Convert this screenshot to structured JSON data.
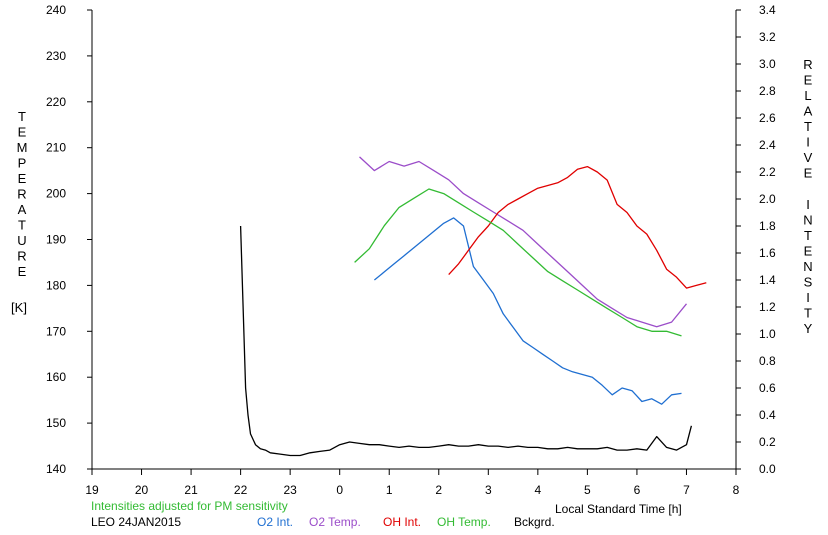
{
  "chart_data": {
    "type": "line",
    "title": "",
    "xlabel": "Local Standard Time [h]",
    "ylabel_left_letters": [
      "T",
      "E",
      "M",
      "P",
      "E",
      "R",
      "A",
      "T",
      "U",
      "R",
      "E"
    ],
    "ylabel_left_unit": "[K]",
    "ylabel_right_words": [
      [
        "R",
        "E",
        "L",
        "A",
        "T",
        "I",
        "V",
        "E"
      ],
      [
        "I",
        "N",
        "T",
        "E",
        "N",
        "S",
        "I",
        "T",
        "Y"
      ]
    ],
    "x_ticks": [
      19,
      20,
      21,
      22,
      23,
      24,
      25,
      26,
      27,
      28,
      29,
      30,
      31,
      32
    ],
    "x_tick_labels": [
      "19",
      "20",
      "21",
      "22",
      "23",
      "0",
      "1",
      "2",
      "3",
      "4",
      "5",
      "6",
      "7",
      "8"
    ],
    "xlim": [
      19,
      32
    ],
    "ylim_left": [
      140,
      240
    ],
    "y_ticks_left": [
      140,
      150,
      160,
      170,
      180,
      190,
      200,
      210,
      220,
      230,
      240
    ],
    "y_tick_labels_left": [
      "140",
      "150",
      "160",
      "170",
      "180",
      "190",
      "200",
      "210",
      "220",
      "230",
      "240"
    ],
    "ylim_right": [
      0.0,
      3.4
    ],
    "y_ticks_right": [
      0.0,
      0.2,
      0.4,
      0.6,
      0.8,
      1.0,
      1.2,
      1.4,
      1.6,
      1.8,
      2.0,
      2.2,
      2.4,
      2.6,
      2.8,
      3.0,
      3.2,
      3.4
    ],
    "y_tick_labels_right": [
      "0.0",
      "0.2",
      "0.4",
      "0.6",
      "0.8",
      "1.0",
      "1.2",
      "1.4",
      "1.6",
      "1.8",
      "2.0",
      "2.2",
      "2.4",
      "2.6",
      "2.8",
      "3.0",
      "3.2",
      "3.4"
    ],
    "grid": false,
    "series": [
      {
        "name": "O2 Int.",
        "axis": "right",
        "color": "#1f6fd1",
        "x": [
          24.7,
          24.9,
          25.1,
          25.3,
          25.5,
          25.7,
          25.9,
          26.1,
          26.3,
          26.5,
          26.7,
          26.9,
          27.1,
          27.3,
          27.5,
          27.7,
          27.9,
          28.1,
          28.3,
          28.5,
          28.7,
          28.9,
          29.1,
          29.3,
          29.5,
          29.7,
          29.9,
          30.1,
          30.3,
          30.5,
          30.7,
          30.9
        ],
        "y": [
          1.4,
          1.46,
          1.52,
          1.58,
          1.64,
          1.7,
          1.76,
          1.82,
          1.86,
          1.8,
          1.5,
          1.4,
          1.3,
          1.15,
          1.05,
          0.95,
          0.9,
          0.85,
          0.8,
          0.75,
          0.72,
          0.7,
          0.68,
          0.62,
          0.55,
          0.6,
          0.58,
          0.5,
          0.52,
          0.48,
          0.55,
          0.56
        ]
      },
      {
        "name": "O2 Temp.",
        "axis": "left",
        "color": "#9b4dc9",
        "x": [
          24.4,
          24.7,
          25.0,
          25.3,
          25.6,
          25.9,
          26.2,
          26.5,
          26.8,
          27.1,
          27.4,
          27.7,
          28.0,
          28.3,
          28.6,
          28.9,
          29.2,
          29.5,
          29.8,
          30.1,
          30.4,
          30.7,
          31.0
        ],
        "y": [
          208,
          205,
          207,
          206,
          207,
          205,
          203,
          200,
          198,
          196,
          194,
          192,
          189,
          186,
          183,
          180,
          177,
          175,
          173,
          172,
          171,
          172,
          176
        ]
      },
      {
        "name": "OH Int.",
        "axis": "right",
        "color": "#e00000",
        "x": [
          26.2,
          26.4,
          26.6,
          26.8,
          27.0,
          27.2,
          27.4,
          27.6,
          27.8,
          28.0,
          28.2,
          28.4,
          28.6,
          28.8,
          29.0,
          29.2,
          29.4,
          29.6,
          29.8,
          30.0,
          30.2,
          30.4,
          30.6,
          30.8,
          31.0,
          31.2,
          31.4
        ],
        "y": [
          1.44,
          1.52,
          1.62,
          1.72,
          1.8,
          1.9,
          1.96,
          2.0,
          2.04,
          2.08,
          2.1,
          2.12,
          2.16,
          2.22,
          2.24,
          2.2,
          2.14,
          1.96,
          1.9,
          1.8,
          1.74,
          1.62,
          1.48,
          1.42,
          1.34,
          1.36,
          1.38
        ]
      },
      {
        "name": "OH Temp.",
        "axis": "left",
        "color": "#33bb33",
        "x": [
          24.3,
          24.6,
          24.9,
          25.2,
          25.5,
          25.8,
          26.1,
          26.4,
          26.7,
          27.0,
          27.3,
          27.6,
          27.9,
          28.2,
          28.5,
          28.8,
          29.1,
          29.4,
          29.7,
          30.0,
          30.3,
          30.6,
          30.9
        ],
        "y": [
          185,
          188,
          193,
          197,
          199,
          201,
          200,
          198,
          196,
          194,
          192,
          189,
          186,
          183,
          181,
          179,
          177,
          175,
          173,
          171,
          170,
          170,
          169
        ]
      },
      {
        "name": "Bckgrd.",
        "axis": "right",
        "color": "#000000",
        "x": [
          22.0,
          22.05,
          22.1,
          22.15,
          22.2,
          22.3,
          22.4,
          22.5,
          22.6,
          22.8,
          23.0,
          23.2,
          23.4,
          23.6,
          23.8,
          24.0,
          24.2,
          24.4,
          24.6,
          24.8,
          25.0,
          25.2,
          25.4,
          25.6,
          25.8,
          26.0,
          26.2,
          26.4,
          26.6,
          26.8,
          27.0,
          27.2,
          27.4,
          27.6,
          27.8,
          28.0,
          28.2,
          28.4,
          28.6,
          28.8,
          29.0,
          29.2,
          29.4,
          29.6,
          29.8,
          30.0,
          30.2,
          30.4,
          30.6,
          30.8,
          31.0,
          31.1
        ],
        "y": [
          1.8,
          1.2,
          0.6,
          0.4,
          0.26,
          0.18,
          0.15,
          0.14,
          0.12,
          0.11,
          0.1,
          0.1,
          0.12,
          0.13,
          0.14,
          0.18,
          0.2,
          0.19,
          0.18,
          0.18,
          0.17,
          0.16,
          0.17,
          0.16,
          0.16,
          0.17,
          0.18,
          0.17,
          0.17,
          0.18,
          0.17,
          0.17,
          0.16,
          0.17,
          0.16,
          0.16,
          0.15,
          0.15,
          0.16,
          0.15,
          0.15,
          0.15,
          0.16,
          0.14,
          0.14,
          0.15,
          0.14,
          0.24,
          0.16,
          0.14,
          0.18,
          0.32
        ]
      }
    ]
  },
  "footer": {
    "adjusted_note": "Intensities adjusted for PM sensitivity",
    "station_date": "LEO 24JAN2015",
    "legend": [
      {
        "label": "O2 Int.",
        "color": "#1f6fd1"
      },
      {
        "label": "O2 Temp.",
        "color": "#9b4dc9"
      },
      {
        "label": "OH Int.",
        "color": "#e00000"
      },
      {
        "label": "OH Temp.",
        "color": "#33bb33"
      },
      {
        "label": "Bckgrd.",
        "color": "#000000"
      }
    ]
  }
}
